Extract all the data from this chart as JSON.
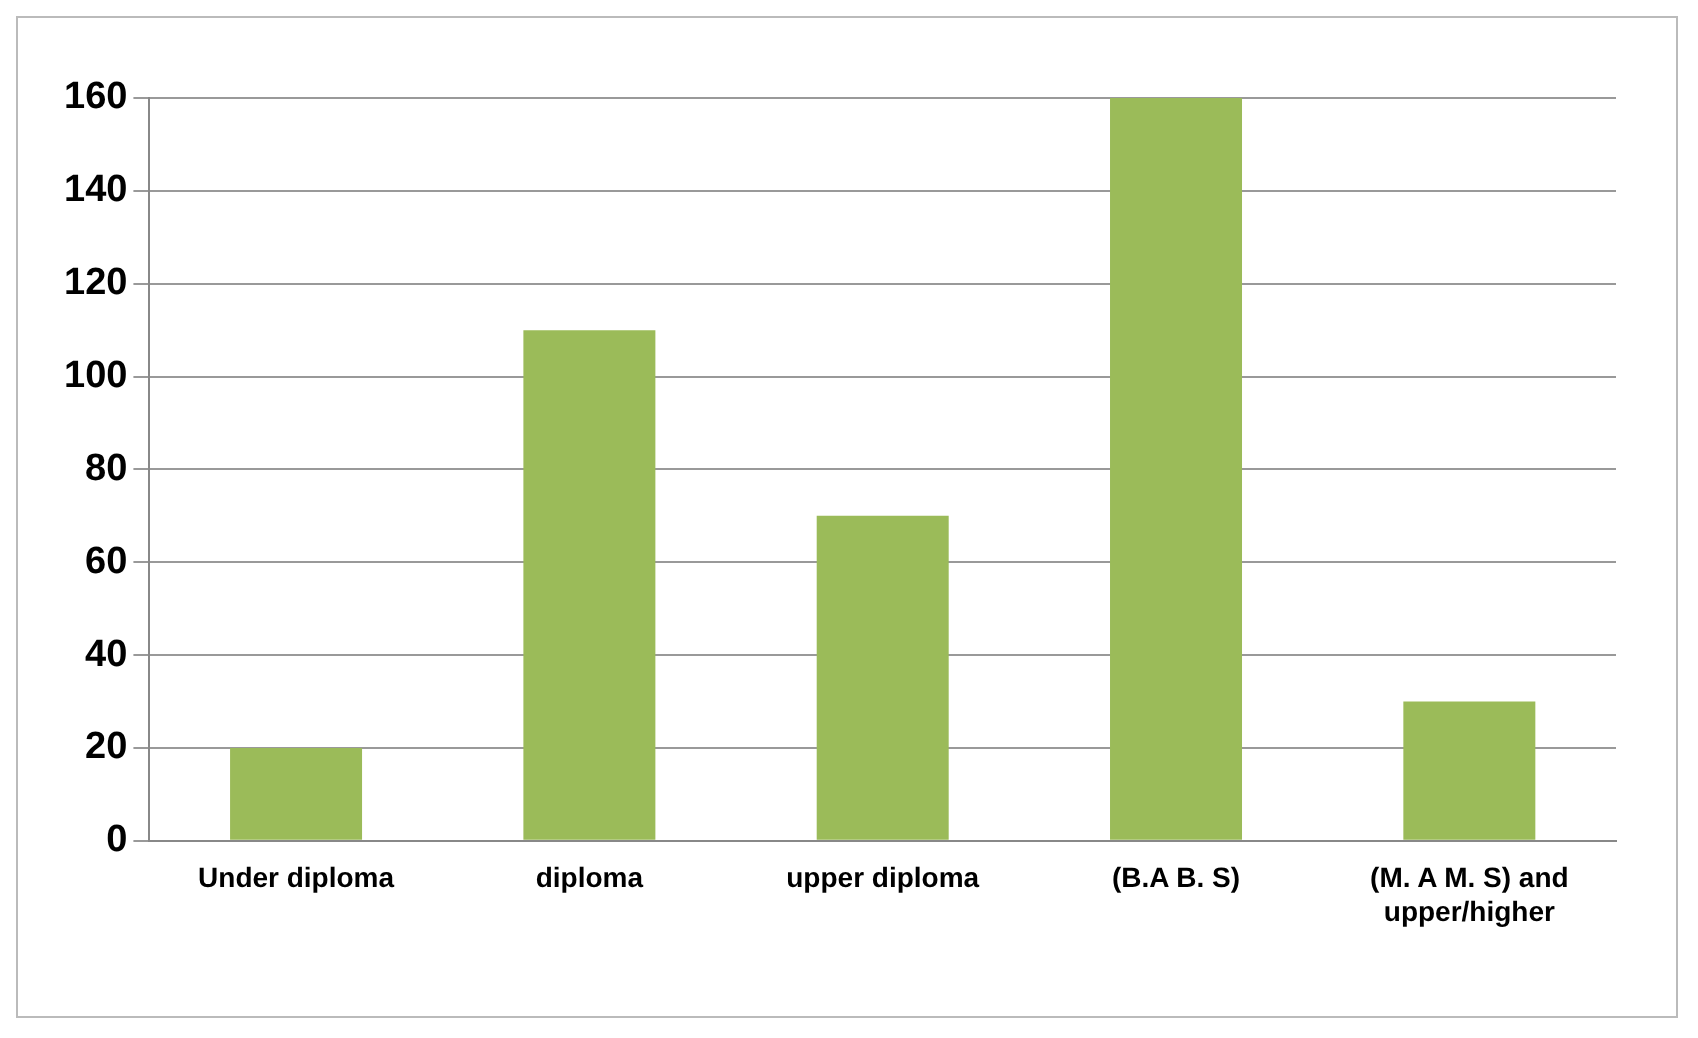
{
  "chart_data": {
    "type": "bar",
    "categories": [
      "Under diploma",
      "diploma",
      "upper diploma",
      "(B.A B. S)",
      "(M. A M. S) and upper/higher"
    ],
    "values": [
      20,
      110,
      70,
      160,
      30
    ],
    "color": "#9bbb59",
    "ylim": [
      0,
      160
    ],
    "yticks": [
      0,
      20,
      40,
      60,
      80,
      100,
      120,
      140,
      160
    ],
    "grid": "y"
  }
}
